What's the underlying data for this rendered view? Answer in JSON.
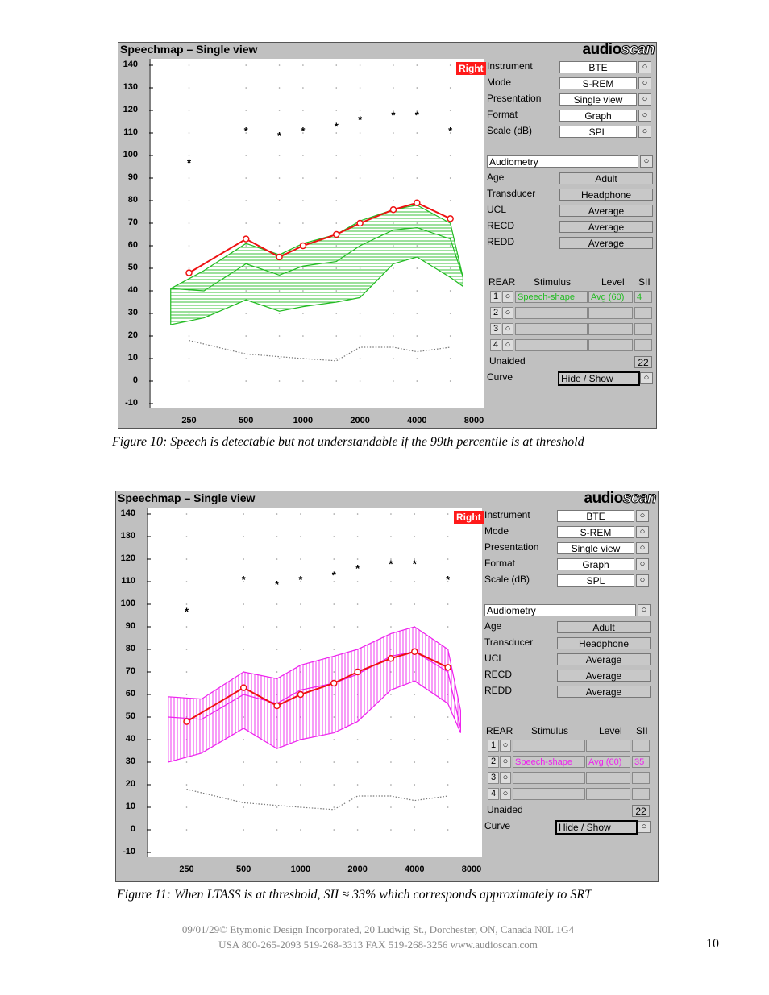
{
  "figures": [
    {
      "panel_title": "Speechmap – Single view",
      "brand_a": "audio",
      "brand_b": "scan",
      "ear": "Right",
      "settings": [
        {
          "label": "Instrument",
          "value": "BTE"
        },
        {
          "label": "Mode",
          "value": "S-REM"
        },
        {
          "label": "Presentation",
          "value": "Single view"
        },
        {
          "label": "Format",
          "value": "Graph"
        },
        {
          "label": "Scale (dB)",
          "value": "SPL"
        }
      ],
      "audiometry_label": "Audiometry",
      "audiometry": [
        {
          "label": "Age",
          "value": "Adult"
        },
        {
          "label": "Transducer",
          "value": "Headphone"
        },
        {
          "label": "UCL",
          "value": "Average"
        },
        {
          "label": "RECD",
          "value": "Average"
        },
        {
          "label": "REDD",
          "value": "Average"
        }
      ],
      "rear_headers": {
        "rear": "REAR",
        "stimulus": "Stimulus",
        "level": "Level",
        "sii": "SII"
      },
      "rear_rows": [
        {
          "num": "1",
          "stimulus": "Speech-shape",
          "level": "Avg (60)",
          "sii": "4"
        },
        {
          "num": "2",
          "stimulus": "",
          "level": "",
          "sii": ""
        },
        {
          "num": "3",
          "stimulus": "",
          "level": "",
          "sii": ""
        },
        {
          "num": "4",
          "stimulus": "",
          "level": "",
          "sii": ""
        }
      ],
      "unaided_label": "Unaided",
      "unaided_value": "22",
      "curve_label": "Curve",
      "curve_value": "Hide / Show",
      "caption": "Figure 10:  Speech is detectable but not understandable if the 99th percentile is at threshold",
      "color": "#22bb22",
      "hatch": "horizontal",
      "active_row": 0
    },
    {
      "panel_title": "Speechmap – Single view",
      "brand_a": "audio",
      "brand_b": "scan",
      "ear": "Right",
      "settings": [
        {
          "label": "Instrument",
          "value": "BTE"
        },
        {
          "label": "Mode",
          "value": "S-REM"
        },
        {
          "label": "Presentation",
          "value": "Single view"
        },
        {
          "label": "Format",
          "value": "Graph"
        },
        {
          "label": "Scale (dB)",
          "value": "SPL"
        }
      ],
      "audiometry_label": "Audiometry",
      "audiometry": [
        {
          "label": "Age",
          "value": "Adult"
        },
        {
          "label": "Transducer",
          "value": "Headphone"
        },
        {
          "label": "UCL",
          "value": "Average"
        },
        {
          "label": "RECD",
          "value": "Average"
        },
        {
          "label": "REDD",
          "value": "Average"
        }
      ],
      "rear_headers": {
        "rear": "REAR",
        "stimulus": "Stimulus",
        "level": "Level",
        "sii": "SII"
      },
      "rear_rows": [
        {
          "num": "1",
          "stimulus": "",
          "level": "",
          "sii": ""
        },
        {
          "num": "2",
          "stimulus": "Speech-shape",
          "level": "Avg (60)",
          "sii": "35"
        },
        {
          "num": "3",
          "stimulus": "",
          "level": "",
          "sii": ""
        },
        {
          "num": "4",
          "stimulus": "",
          "level": "",
          "sii": ""
        }
      ],
      "unaided_label": "Unaided",
      "unaided_value": "22",
      "curve_label": "Curve",
      "curve_value": "Hide / Show",
      "caption": "Figure 11:  When LTASS is at threshold, SII ≈ 33% which corresponds approximately to SRT",
      "color": "#ee22ee",
      "hatch": "vertical",
      "active_row": 1
    }
  ],
  "chart_data": [
    {
      "type": "line",
      "y_ticks": [
        140,
        130,
        120,
        110,
        100,
        90,
        80,
        70,
        60,
        50,
        40,
        30,
        20,
        10,
        0,
        -10
      ],
      "x_ticks": [
        "250",
        "500",
        "1000",
        "2000",
        "4000",
        "8000"
      ],
      "ylim": [
        -10,
        140
      ],
      "ucl": [
        {
          "f": 250,
          "db": 97
        },
        {
          "f": 500,
          "db": 111
        },
        {
          "f": 750,
          "db": 109
        },
        {
          "f": 1000,
          "db": 111
        },
        {
          "f": 1500,
          "db": 113
        },
        {
          "f": 2000,
          "db": 116
        },
        {
          "f": 3000,
          "db": 118
        },
        {
          "f": 4000,
          "db": 118
        },
        {
          "f": 6000,
          "db": 111
        }
      ],
      "threshold": [
        {
          "f": 250,
          "db": 48
        },
        {
          "f": 500,
          "db": 63
        },
        {
          "f": 750,
          "db": 55
        },
        {
          "f": 1000,
          "db": 60
        },
        {
          "f": 1500,
          "db": 65
        },
        {
          "f": 2000,
          "db": 70
        },
        {
          "f": 3000,
          "db": 76
        },
        {
          "f": 4000,
          "db": 79
        },
        {
          "f": 6000,
          "db": 72
        }
      ],
      "noise_floor": [
        {
          "f": 250,
          "db": 18
        },
        {
          "f": 500,
          "db": 12
        },
        {
          "f": 1000,
          "db": 10
        },
        {
          "f": 1500,
          "db": 9
        },
        {
          "f": 2000,
          "db": 15
        },
        {
          "f": 3000,
          "db": 15
        },
        {
          "f": 4000,
          "db": 13
        },
        {
          "f": 6000,
          "db": 15
        }
      ],
      "speech_upper": [
        {
          "f": 200,
          "db": 41
        },
        {
          "f": 300,
          "db": 49
        },
        {
          "f": 500,
          "db": 61
        },
        {
          "f": 750,
          "db": 56
        },
        {
          "f": 1000,
          "db": 61
        },
        {
          "f": 1500,
          "db": 65
        },
        {
          "f": 2000,
          "db": 71
        },
        {
          "f": 3000,
          "db": 76
        },
        {
          "f": 4000,
          "db": 78
        },
        {
          "f": 6000,
          "db": 70
        },
        {
          "f": 7000,
          "db": 46
        }
      ],
      "speech_ltass": [
        {
          "f": 200,
          "db": 41
        },
        {
          "f": 300,
          "db": 40
        },
        {
          "f": 500,
          "db": 52
        },
        {
          "f": 750,
          "db": 47
        },
        {
          "f": 1000,
          "db": 51
        },
        {
          "f": 1500,
          "db": 53
        },
        {
          "f": 2000,
          "db": 60
        },
        {
          "f": 3000,
          "db": 67
        },
        {
          "f": 4000,
          "db": 68
        },
        {
          "f": 6000,
          "db": 63
        },
        {
          "f": 7000,
          "db": 46
        }
      ],
      "speech_lower": [
        {
          "f": 200,
          "db": 25
        },
        {
          "f": 300,
          "db": 28
        },
        {
          "f": 500,
          "db": 36
        },
        {
          "f": 750,
          "db": 31
        },
        {
          "f": 1000,
          "db": 33
        },
        {
          "f": 1500,
          "db": 35
        },
        {
          "f": 2000,
          "db": 37
        },
        {
          "f": 3000,
          "db": 52
        },
        {
          "f": 4000,
          "db": 55
        },
        {
          "f": 6000,
          "db": 46
        },
        {
          "f": 7000,
          "db": 42
        }
      ]
    },
    {
      "type": "line",
      "y_ticks": [
        140,
        130,
        120,
        110,
        100,
        90,
        80,
        70,
        60,
        50,
        40,
        30,
        20,
        10,
        0,
        -10
      ],
      "x_ticks": [
        "250",
        "500",
        "1000",
        "2000",
        "4000",
        "8000"
      ],
      "ylim": [
        -10,
        140
      ],
      "ucl": [
        {
          "f": 250,
          "db": 97
        },
        {
          "f": 500,
          "db": 111
        },
        {
          "f": 750,
          "db": 109
        },
        {
          "f": 1000,
          "db": 111
        },
        {
          "f": 1500,
          "db": 113
        },
        {
          "f": 2000,
          "db": 116
        },
        {
          "f": 3000,
          "db": 118
        },
        {
          "f": 4000,
          "db": 118
        },
        {
          "f": 6000,
          "db": 111
        }
      ],
      "threshold": [
        {
          "f": 250,
          "db": 48
        },
        {
          "f": 500,
          "db": 63
        },
        {
          "f": 750,
          "db": 55
        },
        {
          "f": 1000,
          "db": 60
        },
        {
          "f": 1500,
          "db": 65
        },
        {
          "f": 2000,
          "db": 70
        },
        {
          "f": 3000,
          "db": 76
        },
        {
          "f": 4000,
          "db": 79
        },
        {
          "f": 6000,
          "db": 72
        }
      ],
      "noise_floor": [
        {
          "f": 250,
          "db": 18
        },
        {
          "f": 500,
          "db": 12
        },
        {
          "f": 1000,
          "db": 10
        },
        {
          "f": 1500,
          "db": 9
        },
        {
          "f": 2000,
          "db": 15
        },
        {
          "f": 3000,
          "db": 15
        },
        {
          "f": 4000,
          "db": 13
        },
        {
          "f": 6000,
          "db": 15
        }
      ],
      "speech_upper": [
        {
          "f": 200,
          "db": 59
        },
        {
          "f": 300,
          "db": 58
        },
        {
          "f": 500,
          "db": 70
        },
        {
          "f": 750,
          "db": 67
        },
        {
          "f": 1000,
          "db": 73
        },
        {
          "f": 1500,
          "db": 77
        },
        {
          "f": 2000,
          "db": 80
        },
        {
          "f": 3000,
          "db": 87
        },
        {
          "f": 4000,
          "db": 90
        },
        {
          "f": 6000,
          "db": 80
        },
        {
          "f": 7000,
          "db": 53
        }
      ],
      "speech_ltass": [
        {
          "f": 200,
          "db": 50
        },
        {
          "f": 300,
          "db": 49
        },
        {
          "f": 500,
          "db": 60
        },
        {
          "f": 750,
          "db": 56
        },
        {
          "f": 1000,
          "db": 62
        },
        {
          "f": 1500,
          "db": 65
        },
        {
          "f": 2000,
          "db": 69
        },
        {
          "f": 3000,
          "db": 77
        },
        {
          "f": 4000,
          "db": 79
        },
        {
          "f": 6000,
          "db": 70
        },
        {
          "f": 7000,
          "db": 45
        }
      ],
      "speech_lower": [
        {
          "f": 200,
          "db": 30
        },
        {
          "f": 300,
          "db": 34
        },
        {
          "f": 500,
          "db": 45
        },
        {
          "f": 750,
          "db": 36
        },
        {
          "f": 1000,
          "db": 40
        },
        {
          "f": 1500,
          "db": 43
        },
        {
          "f": 2000,
          "db": 48
        },
        {
          "f": 3000,
          "db": 62
        },
        {
          "f": 4000,
          "db": 66
        },
        {
          "f": 6000,
          "db": 56
        },
        {
          "f": 7000,
          "db": 43
        }
      ]
    }
  ],
  "footer": {
    "line1": "09/01/29© Etymonic Design Incorporated, 20 Ludwig St., Dorchester, ON, Canada  N0L 1G4",
    "line2": "USA 800-265-2093  519-268-3313  FAX 519-268-3256  www.audioscan.com",
    "page": "10"
  }
}
